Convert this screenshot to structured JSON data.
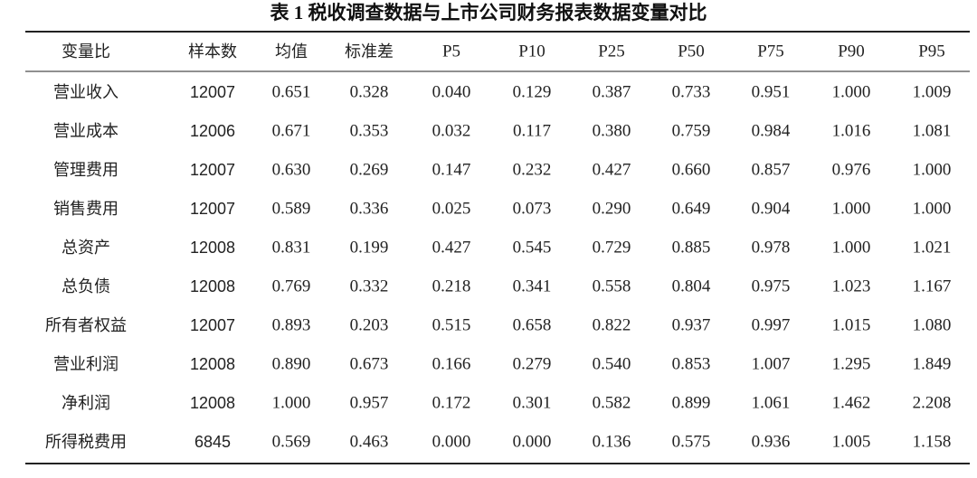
{
  "table": {
    "title": "表 1 税收调查数据与上市公司财务报表数据变量对比",
    "header": [
      "变量比",
      "样本数",
      "均值",
      "标准差",
      "P5",
      "P10",
      "P25",
      "P50",
      "P75",
      "P90",
      "P95"
    ],
    "rows": [
      [
        "营业收入",
        "12007",
        "0.651",
        "0.328",
        "0.040",
        "0.129",
        "0.387",
        "0.733",
        "0.951",
        "1.000",
        "1.009"
      ],
      [
        "营业成本",
        "12006",
        "0.671",
        "0.353",
        "0.032",
        "0.117",
        "0.380",
        "0.759",
        "0.984",
        "1.016",
        "1.081"
      ],
      [
        "管理费用",
        "12007",
        "0.630",
        "0.269",
        "0.147",
        "0.232",
        "0.427",
        "0.660",
        "0.857",
        "0.976",
        "1.000"
      ],
      [
        "销售费用",
        "12007",
        "0.589",
        "0.336",
        "0.025",
        "0.073",
        "0.290",
        "0.649",
        "0.904",
        "1.000",
        "1.000"
      ],
      [
        "总资产",
        "12008",
        "0.831",
        "0.199",
        "0.427",
        "0.545",
        "0.729",
        "0.885",
        "0.978",
        "1.000",
        "1.021"
      ],
      [
        "总负债",
        "12008",
        "0.769",
        "0.332",
        "0.218",
        "0.341",
        "0.558",
        "0.804",
        "0.975",
        "1.023",
        "1.167"
      ],
      [
        "所有者权益",
        "12007",
        "0.893",
        "0.203",
        "0.515",
        "0.658",
        "0.822",
        "0.937",
        "0.997",
        "1.015",
        "1.080"
      ],
      [
        "营业利润",
        "12008",
        "0.890",
        "0.673",
        "0.166",
        "0.279",
        "0.540",
        "0.853",
        "1.007",
        "1.295",
        "1.849"
      ],
      [
        "净利润",
        "12008",
        "1.000",
        "0.957",
        "0.172",
        "0.301",
        "0.582",
        "0.899",
        "1.061",
        "1.462",
        "2.208"
      ],
      [
        "所得税费用",
        "6845",
        "0.569",
        "0.463",
        "0.000",
        "0.000",
        "0.136",
        "0.575",
        "0.936",
        "1.005",
        "1.158"
      ]
    ]
  }
}
